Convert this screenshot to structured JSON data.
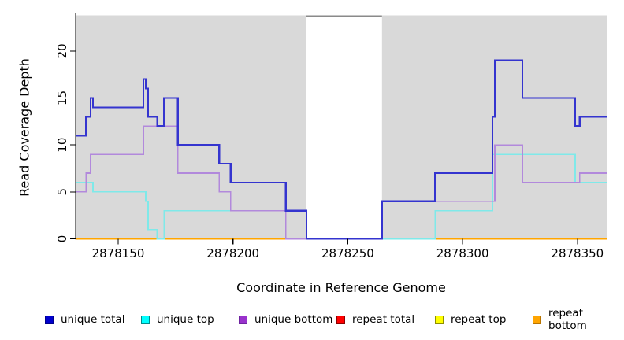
{
  "chart_data": {
    "type": "line",
    "subtype": "step",
    "title": "",
    "xlabel": "Coordinate in Reference Genome",
    "ylabel": "Read Coverage Depth",
    "xlim": [
      2878131.3,
      2878363.1
    ],
    "ylim": [
      0,
      23.8
    ],
    "x_ticks": [
      2878150,
      2878200,
      2878250,
      2878300,
      2878350
    ],
    "y_ticks": [
      0,
      5,
      10,
      15,
      20
    ],
    "grid": false,
    "panel_bg": "#D9D9D9",
    "axis_color": "#000000",
    "masked_region": {
      "x_start": 2878231.7,
      "x_end": 2878264.9,
      "fill": "#FFFFFF",
      "top_border_color": "#8A8A8A"
    },
    "series": [
      {
        "id": "repeat-total",
        "label": "repeat total",
        "color": "#CC0000",
        "stroke_width": 1.7,
        "layer": 1,
        "steps": [
          [
            2878131.3,
            0
          ]
        ]
      },
      {
        "id": "repeat-top",
        "label": "repeat top",
        "color": "#FFFF00",
        "stroke_width": 1.7,
        "layer": 1,
        "steps": [
          [
            2878131.3,
            0
          ]
        ]
      },
      {
        "id": "repeat-bottom",
        "label": "repeat bottom",
        "color": "#FFA500",
        "stroke_width": 2,
        "layer": 1,
        "steps": [
          [
            2878131.3,
            0
          ]
        ]
      },
      {
        "id": "unique-top",
        "label": "unique top",
        "color": "#7FE9E9",
        "stroke_width": 1.7,
        "layer": 2,
        "steps": [
          [
            2878131.3,
            6
          ],
          [
            2878139,
            5
          ],
          [
            2878162,
            4
          ],
          [
            2878163,
            1
          ],
          [
            2878167,
            0
          ],
          [
            2878170,
            3
          ],
          [
            2878232,
            0
          ],
          [
            2878288,
            3
          ],
          [
            2878313,
            9
          ],
          [
            2878349,
            6
          ]
        ]
      },
      {
        "id": "unique-bottom",
        "label": "unique bottom",
        "color": "#B289DC",
        "stroke_width": 1.7,
        "layer": 2,
        "steps": [
          [
            2878131.3,
            5
          ],
          [
            2878136,
            7
          ],
          [
            2878138,
            9
          ],
          [
            2878161,
            12
          ],
          [
            2878176,
            7
          ],
          [
            2878194,
            5
          ],
          [
            2878199,
            3
          ],
          [
            2878223,
            0
          ],
          [
            2878265,
            4
          ],
          [
            2878314,
            10
          ],
          [
            2878326,
            6
          ],
          [
            2878351,
            7
          ]
        ]
      },
      {
        "id": "unique-total",
        "label": "unique total",
        "color": "#3434CF",
        "stroke_width": 2.2,
        "layer": 2,
        "steps": [
          [
            2878131.3,
            11
          ],
          [
            2878136,
            13
          ],
          [
            2878138,
            15
          ],
          [
            2878139,
            14
          ],
          [
            2878161,
            17
          ],
          [
            2878162,
            16
          ],
          [
            2878163,
            13
          ],
          [
            2878167,
            12
          ],
          [
            2878170,
            15
          ],
          [
            2878176,
            10
          ],
          [
            2878194,
            8
          ],
          [
            2878199,
            6
          ],
          [
            2878223,
            3
          ],
          [
            2878232,
            0
          ],
          [
            2878265,
            4
          ],
          [
            2878288,
            7
          ],
          [
            2878313,
            13
          ],
          [
            2878314,
            19
          ],
          [
            2878326,
            15
          ],
          [
            2878349,
            12
          ],
          [
            2878351,
            13
          ]
        ]
      }
    ],
    "legend": {
      "position": "bottom",
      "items": [
        {
          "label": "unique total",
          "fill": "#0000CD",
          "border": "#00008B"
        },
        {
          "label": "unique top",
          "fill": "#00FFFF",
          "border": "#008B8B"
        },
        {
          "label": "unique bottom",
          "fill": "#9932CC",
          "border": "#6E24A0"
        },
        {
          "label": "repeat total",
          "fill": "#FF0000",
          "border": "#8B0000"
        },
        {
          "label": "repeat top",
          "fill": "#FFFF00",
          "border": "#8F8F00"
        },
        {
          "label": "repeat bottom",
          "fill": "#FFA500",
          "border": "#B87400"
        }
      ]
    }
  }
}
